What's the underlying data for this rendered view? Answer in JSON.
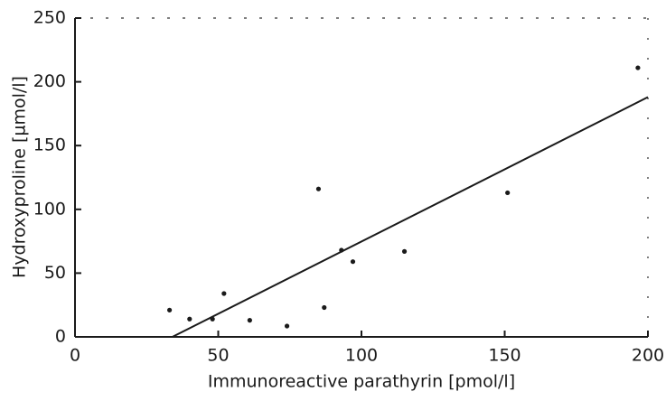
{
  "chart_data": {
    "type": "scatter",
    "xlabel": "Immunoreactive parathyrin [pmol/l]",
    "ylabel": "Hydroxyproline [µmol/l]",
    "points": {
      "x": [
        33,
        40,
        48,
        52,
        61,
        74,
        85,
        87,
        93,
        97,
        115,
        151,
        196.5
      ],
      "y": [
        21,
        14,
        14,
        34,
        13,
        8.5,
        116,
        23,
        68,
        59,
        67,
        113,
        211
      ]
    },
    "fit_line": {
      "x": [
        34,
        200
      ],
      "y": [
        0,
        188
      ]
    },
    "color": "#1a1a1a",
    "xlim": [
      0,
      200
    ],
    "xticks": [
      0,
      50,
      100,
      150,
      200
    ],
    "ylim": [
      0,
      250
    ],
    "yticks": [
      0,
      50,
      100,
      150,
      200,
      250
    ],
    "grid": false
  }
}
